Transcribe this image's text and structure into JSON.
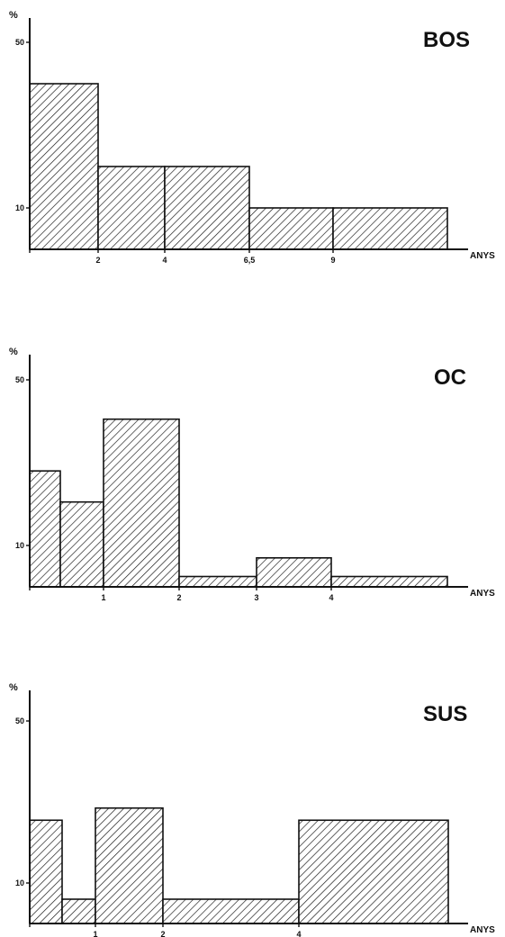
{
  "colors": {
    "ink": "#111111",
    "background": "#ffffff"
  },
  "chart_data": [
    {
      "type": "bar",
      "title": "BOS",
      "ylabel": "%",
      "xlabel": "ANYS",
      "y_ticks": [
        10,
        50
      ],
      "x_ticks": [
        "2",
        "4",
        "6,5",
        "9"
      ],
      "ylim": [
        0,
        55
      ],
      "bins": [
        {
          "from": "0",
          "to": "2",
          "value": 40
        },
        {
          "from": "2",
          "to": "4",
          "value": 20
        },
        {
          "from": "4",
          "to": "6,5",
          "value": 20
        },
        {
          "from": "6,5",
          "to": "9",
          "value": 10
        },
        {
          "from": "9",
          "to": "",
          "value": 10
        }
      ]
    },
    {
      "type": "bar",
      "title": "OC",
      "ylabel": "%",
      "xlabel": "ANYS",
      "y_ticks": [
        10,
        50
      ],
      "x_ticks": [
        "1",
        "2",
        "3",
        "4"
      ],
      "ylim": [
        0,
        55
      ],
      "bins": [
        {
          "from": "",
          "to": "",
          "value": 28
        },
        {
          "from": "",
          "to": "1",
          "value": 20.5
        },
        {
          "from": "1",
          "to": "2",
          "value": 40.5
        },
        {
          "from": "2",
          "to": "3",
          "value": 2.5
        },
        {
          "from": "3",
          "to": "4",
          "value": 7
        },
        {
          "from": "4",
          "to": "",
          "value": 2.5
        }
      ]
    },
    {
      "type": "bar",
      "title": "SUS",
      "ylabel": "%",
      "xlabel": "ANYS",
      "y_ticks": [
        10,
        50
      ],
      "x_ticks": [
        "1",
        "2",
        "4"
      ],
      "ylim": [
        0,
        55
      ],
      "bins": [
        {
          "from": "",
          "to": "",
          "value": 25.5
        },
        {
          "from": "",
          "to": "1",
          "value": 6
        },
        {
          "from": "1",
          "to": "2",
          "value": 28.5
        },
        {
          "from": "2",
          "to": "4",
          "value": 6
        },
        {
          "from": "4",
          "to": "",
          "value": 25.5
        }
      ]
    }
  ]
}
